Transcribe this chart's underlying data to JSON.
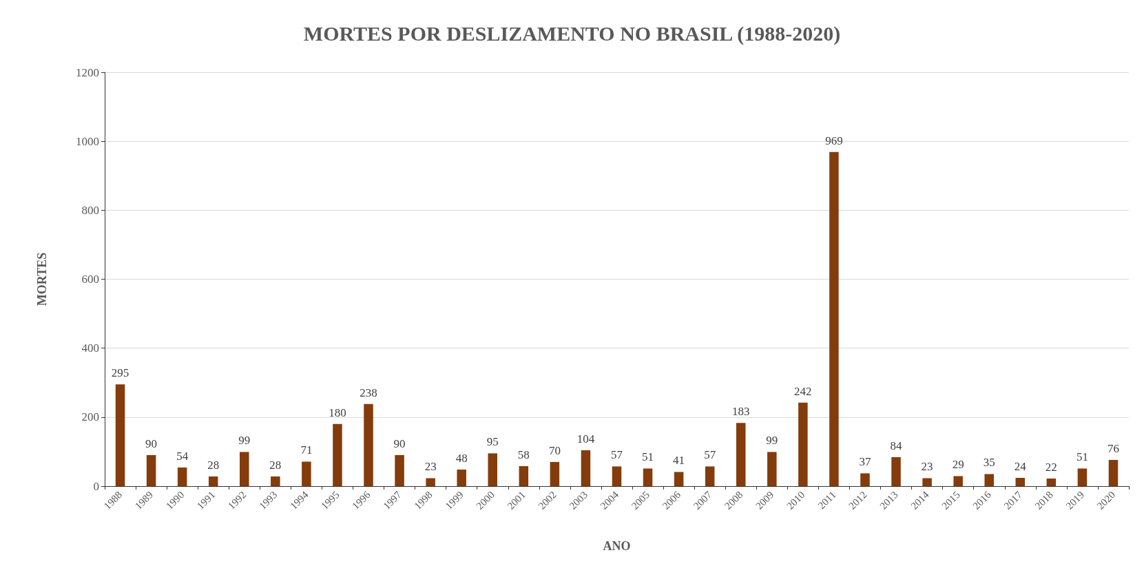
{
  "chart_data": {
    "type": "bar",
    "title": "MORTES POR DESLIZAMENTO NO BRASIL (1988-2020)",
    "xlabel": "ANO",
    "ylabel": "MORTES",
    "categories": [
      "1988",
      "1989",
      "1990",
      "1991",
      "1992",
      "1993",
      "1994",
      "1995",
      "1996",
      "1997",
      "1998",
      "1999",
      "2000",
      "2001",
      "2002",
      "2003",
      "2004",
      "2005",
      "2006",
      "2007",
      "2008",
      "2009",
      "2010",
      "2011",
      "2012",
      "2013",
      "2014",
      "2015",
      "2016",
      "2017",
      "2018",
      "2019",
      "2020"
    ],
    "values": [
      295,
      90,
      54,
      28,
      99,
      28,
      71,
      180,
      238,
      90,
      23,
      48,
      95,
      58,
      70,
      104,
      57,
      51,
      41,
      57,
      183,
      99,
      242,
      969,
      37,
      84,
      23,
      29,
      35,
      24,
      22,
      51,
      76
    ],
    "color": "#843c0c",
    "ylim": [
      0,
      1200
    ],
    "yticks": [
      0,
      200,
      400,
      600,
      800,
      1000,
      1200
    ],
    "grid": "y",
    "data_labels": true
  }
}
